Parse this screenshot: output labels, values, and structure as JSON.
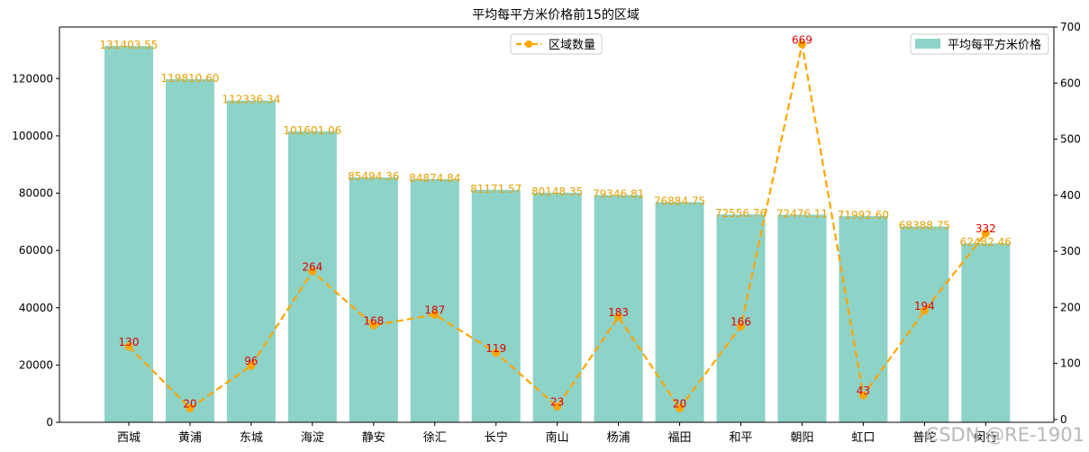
{
  "chart_data": {
    "type": "bar",
    "title": "平均每平方米价格前15的区域",
    "categories": [
      "西城",
      "黄浦",
      "东城",
      "海淀",
      "静安",
      "徐汇",
      "长宁",
      "南山",
      "杨浦",
      "福田",
      "和平",
      "朝阳",
      "虹口",
      "普陀",
      "闵行"
    ],
    "series": [
      {
        "name": "平均每平方米价格",
        "type": "bar",
        "axis": "left",
        "values": [
          131403.55,
          119810.6,
          112336.34,
          101601.06,
          85494.36,
          84874.84,
          81171.57,
          80148.35,
          79346.81,
          76884.75,
          72556.76,
          72476.11,
          71992.6,
          68388.75,
          62482.46
        ],
        "labels": [
          "131403.55",
          "119810.60",
          "112336.34",
          "101601.06",
          "85494.36",
          "84874.84",
          "81171.57",
          "80148.35",
          "79346.81",
          "76884.75",
          "72556.76",
          "72476.11",
          "71992.60",
          "68388.75",
          "62482.46"
        ],
        "color": "#8dd3c7"
      },
      {
        "name": "区域数量",
        "type": "line",
        "axis": "right",
        "values": [
          130,
          20,
          96,
          264,
          168,
          187,
          119,
          23,
          183,
          20,
          166,
          669,
          43,
          194,
          332
        ],
        "labels": [
          "130",
          "20",
          "96",
          "264",
          "168",
          "187",
          "119",
          "23",
          "183",
          "20",
          "166",
          "669",
          "43",
          "194",
          "332"
        ],
        "color": "#ffa500",
        "label_color": "#e00000"
      }
    ],
    "y_left": {
      "lim": [
        0,
        138000
      ],
      "ticks": [
        0,
        20000,
        40000,
        60000,
        80000,
        100000,
        120000
      ],
      "tick_labels": [
        "0",
        "20000",
        "40000",
        "60000",
        "80000",
        "100000",
        "120000"
      ]
    },
    "y_right": {
      "lim": [
        -5,
        700
      ],
      "ticks": [
        0,
        100,
        200,
        300,
        400,
        500,
        600,
        700
      ],
      "tick_labels": [
        "0",
        "100",
        "200",
        "300",
        "400",
        "500",
        "600",
        "700"
      ]
    },
    "legend_left": {
      "placement": "top-center",
      "label": "区域数量"
    },
    "legend_right": {
      "placement": "top-right",
      "label": "平均每平方米价格"
    },
    "watermark": "CSDN @RE-1901"
  }
}
